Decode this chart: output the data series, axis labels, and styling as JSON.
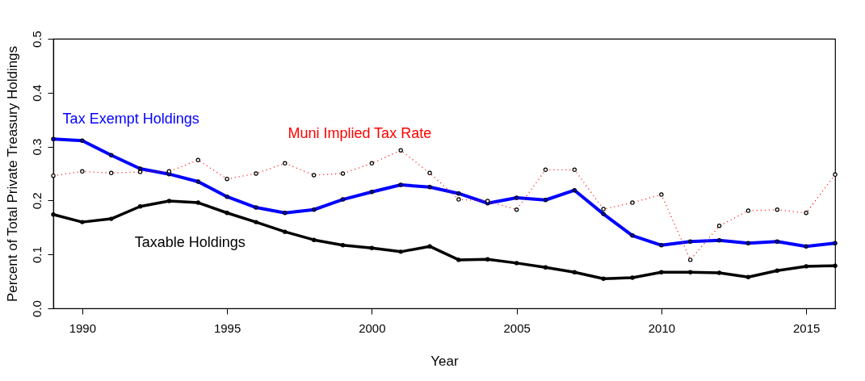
{
  "chart_data": {
    "type": "line",
    "xlabel": "Year",
    "ylabel": "Percent of Total Private Treasury Holdings",
    "x": [
      1989,
      1990,
      1991,
      1992,
      1993,
      1994,
      1995,
      1996,
      1997,
      1998,
      1999,
      2000,
      2001,
      2002,
      2003,
      2004,
      2005,
      2006,
      2007,
      2008,
      2009,
      2010,
      2011,
      2012,
      2013,
      2014,
      2015,
      2016
    ],
    "series": [
      {
        "name": "Tax Exempt Holdings",
        "color": "#0000ff",
        "marker": "circle",
        "line_style": "solid",
        "values": [
          0.314,
          0.311,
          0.284,
          0.259,
          0.249,
          0.235,
          0.207,
          0.187,
          0.177,
          0.183,
          0.202,
          0.216,
          0.229,
          0.225,
          0.213,
          0.195,
          0.205,
          0.201,
          0.219,
          0.175,
          0.135,
          0.117,
          0.124,
          0.126,
          0.121,
          0.124,
          0.115,
          0.121
        ]
      },
      {
        "name": "Muni Implied Tax Rate",
        "color": "#ff0000",
        "marker": "circle",
        "line_style": "dotted",
        "values": [
          0.246,
          0.254,
          0.251,
          0.253,
          0.254,
          0.275,
          0.24,
          0.25,
          0.269,
          0.247,
          0.25,
          0.269,
          0.293,
          0.251,
          0.202,
          0.199,
          0.183,
          0.257,
          0.257,
          0.184,
          0.196,
          0.211,
          0.09,
          0.153,
          0.181,
          0.183,
          0.177,
          0.248
        ]
      },
      {
        "name": "Taxable Holdings",
        "color": "#000000",
        "marker": "circle",
        "line_style": "solid",
        "values": [
          0.174,
          0.16,
          0.166,
          0.189,
          0.199,
          0.196,
          0.177,
          0.16,
          0.142,
          0.127,
          0.117,
          0.112,
          0.105,
          0.115,
          0.09,
          0.091,
          0.084,
          0.076,
          0.067,
          0.055,
          0.057,
          0.067,
          0.067,
          0.066,
          0.058,
          0.07,
          0.078,
          0.079
        ]
      }
    ],
    "xlim": [
      1989,
      2016
    ],
    "xticks": [
      1990,
      1995,
      2000,
      2005,
      2010,
      2015
    ],
    "ylim": [
      0,
      0.5
    ],
    "yticks": [
      {
        "value": 0,
        "label": "0.0"
      },
      {
        "value": 0.1,
        "label": "0.1"
      },
      {
        "value": 0.2,
        "label": "0.2"
      },
      {
        "value": 0.3,
        "label": "0.3"
      },
      {
        "value": 0.4,
        "label": "0.4"
      },
      {
        "value": 0.5,
        "label": "0.5"
      }
    ],
    "tick_labels": true
  }
}
